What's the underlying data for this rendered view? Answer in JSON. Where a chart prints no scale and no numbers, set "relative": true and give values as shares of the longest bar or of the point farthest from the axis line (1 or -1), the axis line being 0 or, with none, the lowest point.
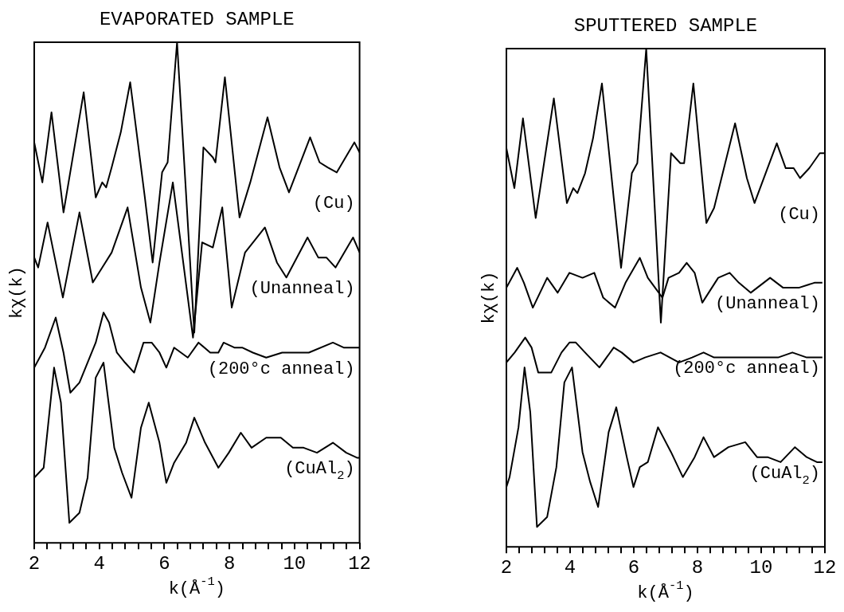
{
  "chart_data": [
    {
      "type": "line",
      "title": "EVAPORATED SAMPLE",
      "xlabel": "k(Å$^{-1}$)",
      "ylabel": "kχ(k)",
      "relative": true,
      "marker": "none",
      "xlim": [
        2,
        12
      ],
      "xticks": [
        2,
        {
          "value": 2.4,
          "label": null
        },
        {
          "value": 2.8,
          "label": null
        },
        {
          "value": 3.2,
          "label": null
        },
        {
          "value": 3.6,
          "label": null
        },
        4,
        {
          "value": 4.4,
          "label": null
        },
        {
          "value": 4.8,
          "label": null
        },
        {
          "value": 5.2,
          "label": null
        },
        {
          "value": 5.6,
          "label": null
        },
        6,
        {
          "value": 6.4,
          "label": null
        },
        {
          "value": 6.8,
          "label": null
        },
        {
          "value": 7.2,
          "label": null
        },
        {
          "value": 7.6,
          "label": null
        },
        8,
        {
          "value": 8.4,
          "label": null
        },
        {
          "value": 8.8,
          "label": null
        },
        {
          "value": 9.2,
          "label": null
        },
        {
          "value": 9.6,
          "label": null
        },
        10,
        {
          "value": 10.4,
          "label": null
        },
        {
          "value": 10.8,
          "label": null
        },
        {
          "value": 11.2,
          "label": null
        },
        {
          "value": 11.6,
          "label": null
        },
        12
      ],
      "series": [
        {
          "name": "(Cu)",
          "color": "#000000",
          "x": [
            2.0,
            2.25,
            2.53,
            2.9,
            3.52,
            3.89,
            4.09,
            4.21,
            4.38,
            4.66,
            4.95,
            5.4,
            5.64,
            5.93,
            6.1,
            6.39,
            6.92,
            7.2,
            7.49,
            7.57,
            7.86,
            8.31,
            8.64,
            9.17,
            9.54,
            9.83,
            10.48,
            10.77,
            11.02,
            11.3,
            11.84,
            12.0
          ],
          "values": [
            0.8,
            0.72,
            0.86,
            0.66,
            0.9,
            0.69,
            0.72,
            0.71,
            0.75,
            0.82,
            0.92,
            0.69,
            0.56,
            0.74,
            0.76,
            1.0,
            0.42,
            0.79,
            0.77,
            0.76,
            0.93,
            0.65,
            0.72,
            0.85,
            0.75,
            0.7,
            0.81,
            0.76,
            0.75,
            0.74,
            0.8,
            0.78
          ]
        },
        {
          "name": "(Unanneal)",
          "color": "#000000",
          "x": [
            2.0,
            2.12,
            2.41,
            2.88,
            3.39,
            3.8,
            4.09,
            4.38,
            4.87,
            5.28,
            5.57,
            5.85,
            6.26,
            6.88,
            7.16,
            7.49,
            7.78,
            8.07,
            8.48,
            9.09,
            9.46,
            9.75,
            10.4,
            10.73,
            10.98,
            11.26,
            11.8,
            12.0
          ],
          "values": [
            0.57,
            0.55,
            0.64,
            0.49,
            0.66,
            0.52,
            0.55,
            0.58,
            0.67,
            0.51,
            0.44,
            0.56,
            0.72,
            0.41,
            0.6,
            0.59,
            0.67,
            0.47,
            0.58,
            0.63,
            0.56,
            0.53,
            0.61,
            0.57,
            0.57,
            0.55,
            0.61,
            0.58
          ]
        },
        {
          "name": "(200°c anneal)",
          "color": "#000000",
          "x": [
            2.0,
            2.33,
            2.66,
            2.9,
            3.11,
            3.39,
            3.89,
            4.13,
            4.3,
            4.54,
            4.79,
            5.07,
            5.36,
            5.61,
            5.85,
            6.06,
            6.3,
            6.51,
            6.72,
            7.05,
            7.41,
            7.66,
            7.82,
            8.15,
            8.39,
            8.72,
            9.13,
            9.62,
            10.03,
            10.44,
            11.18,
            11.51,
            11.75,
            12.0
          ],
          "values": [
            0.35,
            0.39,
            0.45,
            0.38,
            0.3,
            0.32,
            0.4,
            0.46,
            0.44,
            0.38,
            0.36,
            0.34,
            0.4,
            0.4,
            0.38,
            0.35,
            0.39,
            0.38,
            0.37,
            0.4,
            0.38,
            0.38,
            0.4,
            0.39,
            0.39,
            0.38,
            0.37,
            0.38,
            0.38,
            0.38,
            0.4,
            0.39,
            0.39,
            0.39
          ]
        },
        {
          "name": "(CuAl$_{2}$)",
          "color": "#000000",
          "x": [
            2.0,
            2.29,
            2.61,
            2.82,
            3.08,
            3.39,
            3.64,
            3.89,
            4.13,
            4.46,
            4.7,
            4.99,
            5.28,
            5.52,
            5.85,
            6.06,
            6.3,
            6.67,
            6.92,
            7.25,
            7.66,
            7.98,
            8.35,
            8.68,
            9.13,
            9.58,
            9.95,
            10.28,
            10.69,
            11.18,
            11.59,
            11.92,
            12.0
          ],
          "values": [
            0.13,
            0.15,
            0.35,
            0.28,
            0.04,
            0.06,
            0.13,
            0.33,
            0.36,
            0.19,
            0.14,
            0.09,
            0.23,
            0.28,
            0.2,
            0.12,
            0.16,
            0.2,
            0.25,
            0.2,
            0.15,
            0.18,
            0.22,
            0.19,
            0.21,
            0.21,
            0.19,
            0.19,
            0.18,
            0.2,
            0.18,
            0.17,
            0.17
          ]
        }
      ],
      "legend": false
    },
    {
      "type": "line",
      "title": "SPUTTERED SAMPLE",
      "xlabel": "k(Å$^{-1}$)",
      "ylabel": "kχ(k)",
      "relative": true,
      "marker": "none",
      "xlim": [
        2,
        12
      ],
      "xticks": [
        2,
        {
          "value": 2.4,
          "label": null
        },
        {
          "value": 2.8,
          "label": null
        },
        {
          "value": 3.2,
          "label": null
        },
        {
          "value": 3.6,
          "label": null
        },
        4,
        {
          "value": 4.4,
          "label": null
        },
        {
          "value": 4.8,
          "label": null
        },
        {
          "value": 5.2,
          "label": null
        },
        {
          "value": 5.6,
          "label": null
        },
        6,
        {
          "value": 6.4,
          "label": null
        },
        {
          "value": 6.8,
          "label": null
        },
        {
          "value": 7.2,
          "label": null
        },
        {
          "value": 7.6,
          "label": null
        },
        8,
        {
          "value": 8.4,
          "label": null
        },
        {
          "value": 8.8,
          "label": null
        },
        {
          "value": 9.2,
          "label": null
        },
        {
          "value": 9.6,
          "label": null
        },
        10,
        {
          "value": 10.4,
          "label": null
        },
        {
          "value": 10.8,
          "label": null
        },
        {
          "value": 11.2,
          "label": null
        },
        {
          "value": 11.6,
          "label": null
        },
        12
      ],
      "series": [
        {
          "name": "(Cu)",
          "color": "#000000",
          "x": [
            2.0,
            2.25,
            2.52,
            2.92,
            3.49,
            3.9,
            4.1,
            4.23,
            4.47,
            4.72,
            5.0,
            5.37,
            5.6,
            5.94,
            6.11,
            6.39,
            6.85,
            7.17,
            7.46,
            7.58,
            7.87,
            8.28,
            8.52,
            9.18,
            9.55,
            9.79,
            10.49,
            10.77,
            11.02,
            11.22,
            11.51,
            11.84,
            12.0
          ],
          "values": [
            0.8,
            0.72,
            0.86,
            0.66,
            0.9,
            0.69,
            0.72,
            0.71,
            0.75,
            0.82,
            0.93,
            0.7,
            0.56,
            0.75,
            0.77,
            1.0,
            0.45,
            0.79,
            0.77,
            0.77,
            0.93,
            0.65,
            0.68,
            0.85,
            0.74,
            0.69,
            0.81,
            0.76,
            0.76,
            0.74,
            0.76,
            0.79,
            0.79
          ]
        },
        {
          "name": "(Unanneal)",
          "color": "#000000",
          "x": [
            2.0,
            2.34,
            2.55,
            2.83,
            3.28,
            3.61,
            3.98,
            4.39,
            4.76,
            5.04,
            5.41,
            5.74,
            6.19,
            6.44,
            6.9,
            7.09,
            7.42,
            7.66,
            7.91,
            8.15,
            8.65,
            9.01,
            9.3,
            9.67,
            10.28,
            10.69,
            11.18,
            11.67,
            11.92
          ],
          "values": [
            0.52,
            0.56,
            0.53,
            0.48,
            0.54,
            0.51,
            0.55,
            0.54,
            0.55,
            0.5,
            0.48,
            0.53,
            0.58,
            0.54,
            0.5,
            0.54,
            0.55,
            0.57,
            0.55,
            0.49,
            0.54,
            0.55,
            0.53,
            0.51,
            0.54,
            0.52,
            0.52,
            0.53,
            0.53
          ]
        },
        {
          "name": "(200°c anneal)",
          "color": "#000000",
          "x": [
            2.0,
            2.26,
            2.59,
            2.79,
            3.0,
            3.41,
            3.73,
            3.98,
            4.18,
            4.47,
            4.92,
            5.37,
            5.62,
            5.99,
            6.35,
            6.84,
            7.42,
            7.83,
            8.19,
            8.52,
            8.97,
            9.46,
            9.95,
            10.53,
            10.98,
            11.43,
            11.75,
            11.92
          ],
          "values": [
            0.37,
            0.39,
            0.42,
            0.4,
            0.35,
            0.35,
            0.39,
            0.41,
            0.41,
            0.39,
            0.36,
            0.4,
            0.39,
            0.37,
            0.38,
            0.39,
            0.37,
            0.38,
            0.39,
            0.38,
            0.38,
            0.38,
            0.38,
            0.38,
            0.39,
            0.38,
            0.38,
            0.38
          ]
        },
        {
          "name": "(CuAl$_{2}$)",
          "color": "#000000",
          "x": [
            2.0,
            2.1,
            2.38,
            2.57,
            2.75,
            2.96,
            3.28,
            3.57,
            3.82,
            4.06,
            4.39,
            4.63,
            4.88,
            5.21,
            5.45,
            5.78,
            5.99,
            6.19,
            6.44,
            6.76,
            7.17,
            7.54,
            7.91,
            8.19,
            8.52,
            8.97,
            9.5,
            9.87,
            10.2,
            10.61,
            11.06,
            11.43,
            11.75,
            11.92
          ],
          "values": [
            0.12,
            0.14,
            0.24,
            0.36,
            0.27,
            0.04,
            0.06,
            0.16,
            0.33,
            0.36,
            0.19,
            0.13,
            0.08,
            0.23,
            0.28,
            0.18,
            0.12,
            0.16,
            0.17,
            0.24,
            0.19,
            0.14,
            0.18,
            0.22,
            0.18,
            0.2,
            0.21,
            0.18,
            0.18,
            0.17,
            0.2,
            0.18,
            0.17,
            0.17
          ]
        }
      ],
      "legend": false
    }
  ]
}
